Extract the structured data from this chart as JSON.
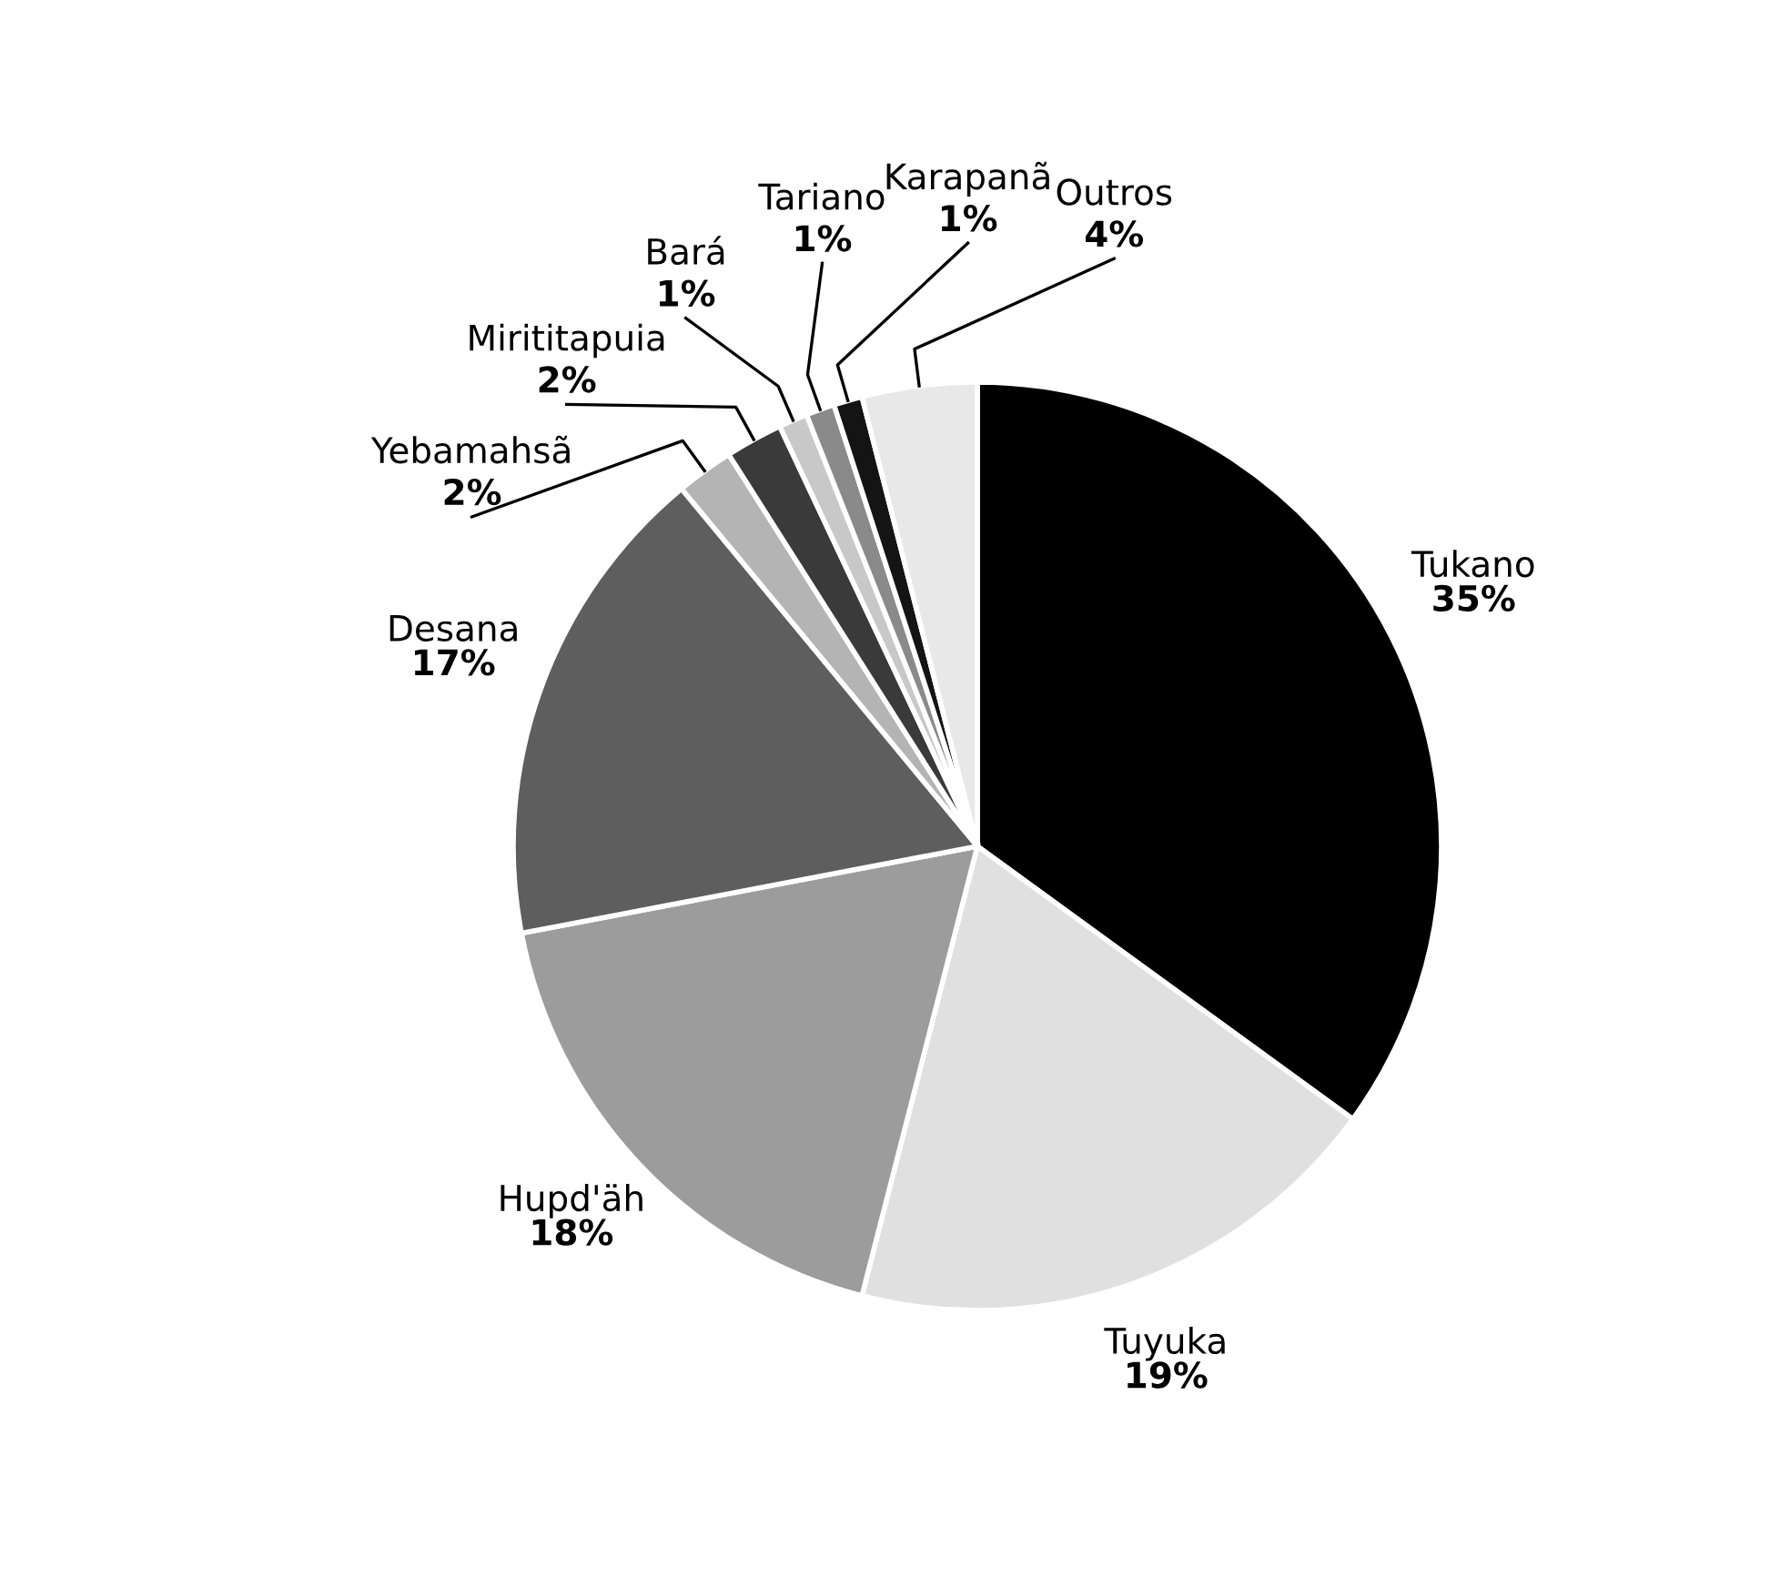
{
  "chart_data": {
    "type": "pie",
    "categories": [
      "Tukano",
      "Tuyuka",
      "Hupd'äh",
      "Desana",
      "Yebamahsã",
      "Mirititapuia",
      "Bará",
      "Tariano",
      "Karapanã",
      "Outros"
    ],
    "values": [
      35,
      19,
      18,
      17,
      2,
      2,
      1,
      1,
      1,
      4
    ],
    "colors": [
      "#000000",
      "#e0e0e0",
      "#9c9c9c",
      "#5e5e5e",
      "#b4b4b4",
      "#3a3a3a",
      "#c8c8c8",
      "#8a8a8a",
      "#141414",
      "#e8e8e8"
    ],
    "value_labels": [
      "35%",
      "19%",
      "18%",
      "17%",
      "2%",
      "2%",
      "1%",
      "1%",
      "1%",
      "4%"
    ]
  }
}
